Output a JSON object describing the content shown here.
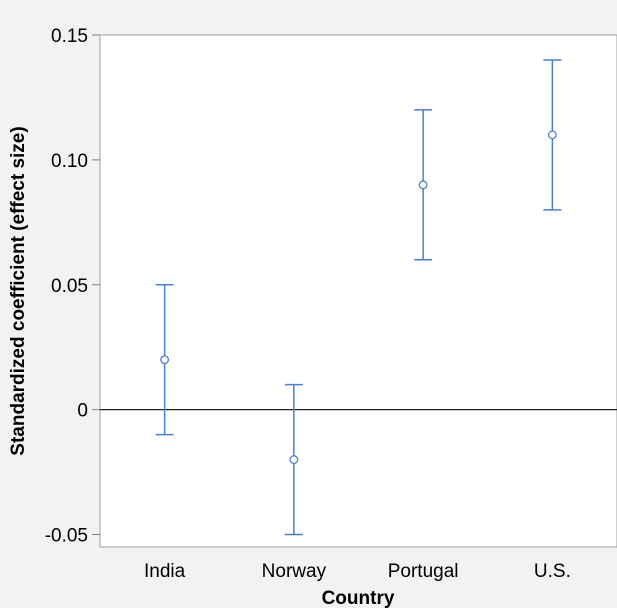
{
  "chart_data": {
    "type": "scatter",
    "title": "",
    "xlabel": "Country",
    "ylabel": "Standardized coefficient (effect size)",
    "categories": [
      "India",
      "Norway",
      "Portugal",
      "U.S."
    ],
    "series": [
      {
        "values": [
          0.02,
          -0.02,
          0.09,
          0.11
        ],
        "lower": [
          -0.01,
          -0.05,
          0.06,
          0.08
        ],
        "upper": [
          0.05,
          0.01,
          0.12,
          0.14
        ]
      }
    ],
    "ylim": [
      -0.055,
      0.15
    ],
    "yticks": [
      -0.05,
      0,
      0.05,
      0.1,
      0.15
    ],
    "ytick_labels": [
      "-0.05",
      "0",
      "0.05",
      "0.10",
      "0.15"
    ],
    "reference_line": 0,
    "grid": false,
    "colors": {
      "series": "#4a7fd4",
      "plot_background": "#ffffff",
      "page_background": "#f2f2f2"
    }
  }
}
